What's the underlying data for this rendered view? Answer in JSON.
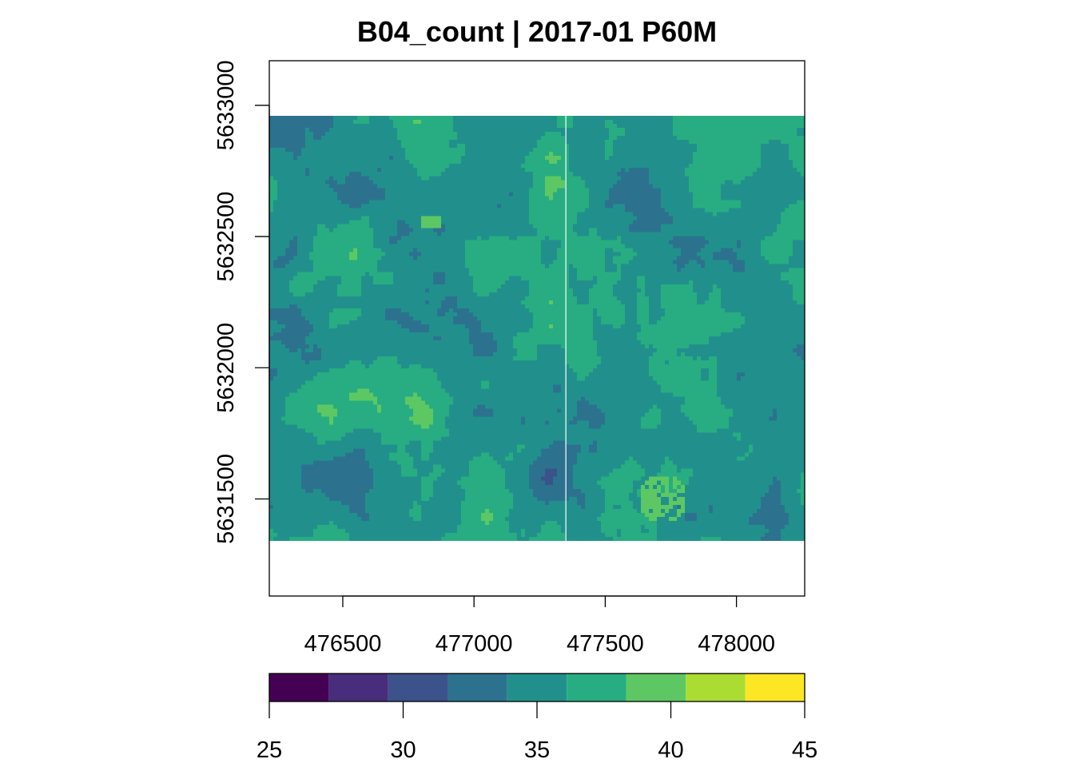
{
  "chart_data": {
    "type": "heatmap",
    "title": "B04_count | 2017-01 P60M",
    "xlabel": "",
    "ylabel": "",
    "x_ticks": [
      476500,
      477000,
      477500,
      478000
    ],
    "y_ticks": [
      5631500,
      5632000,
      5632500,
      5633000
    ],
    "xlim": [
      476220,
      478260
    ],
    "ylim": [
      5631130,
      5633170
    ],
    "raster_extent": {
      "x": [
        476220,
        478260
      ],
      "y": [
        5631340,
        5632960
      ]
    },
    "raster_gap_x": 477350,
    "grid": false,
    "legend": {
      "position": "bottom",
      "breaks": [
        25,
        27.22,
        29.44,
        31.67,
        33.89,
        36.11,
        38.33,
        40.56,
        42.78,
        45
      ],
      "colors": [
        "#440154",
        "#472D7B",
        "#3B528B",
        "#2C728E",
        "#21908C",
        "#27AD81",
        "#5DC863",
        "#AADC32",
        "#FDE725"
      ],
      "ticks": [
        25,
        30,
        35,
        40,
        45
      ]
    },
    "value_range": [
      25,
      45
    ]
  }
}
